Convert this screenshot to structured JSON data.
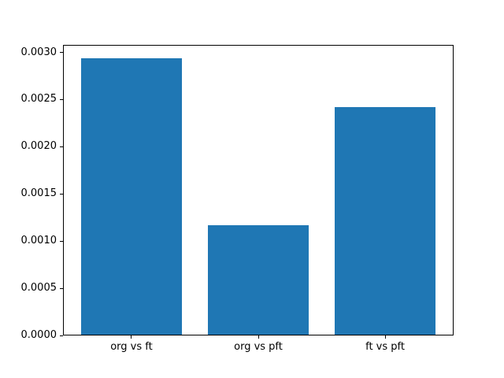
{
  "figure": {
    "background": "#ffffff"
  },
  "chart_data": {
    "type": "bar",
    "title": "",
    "xlabel": "",
    "ylabel": "",
    "categories": [
      "org vs ft",
      "org vs pft",
      "ft vs pft"
    ],
    "values": [
      0.00293,
      0.00116,
      0.00241
    ],
    "bar_color": "#1f77b4",
    "bar_width_units": 0.8,
    "xlim": [
      -0.54,
      2.54
    ],
    "ylim": [
      0,
      0.00308
    ],
    "yticks": {
      "values": [
        0.0,
        0.0005,
        0.001,
        0.0015,
        0.002,
        0.0025,
        0.003
      ],
      "labels": [
        "0.0000",
        "0.0005",
        "0.0010",
        "0.0015",
        "0.0020",
        "0.0025",
        "0.0030"
      ]
    },
    "grid": false,
    "legend": null
  }
}
